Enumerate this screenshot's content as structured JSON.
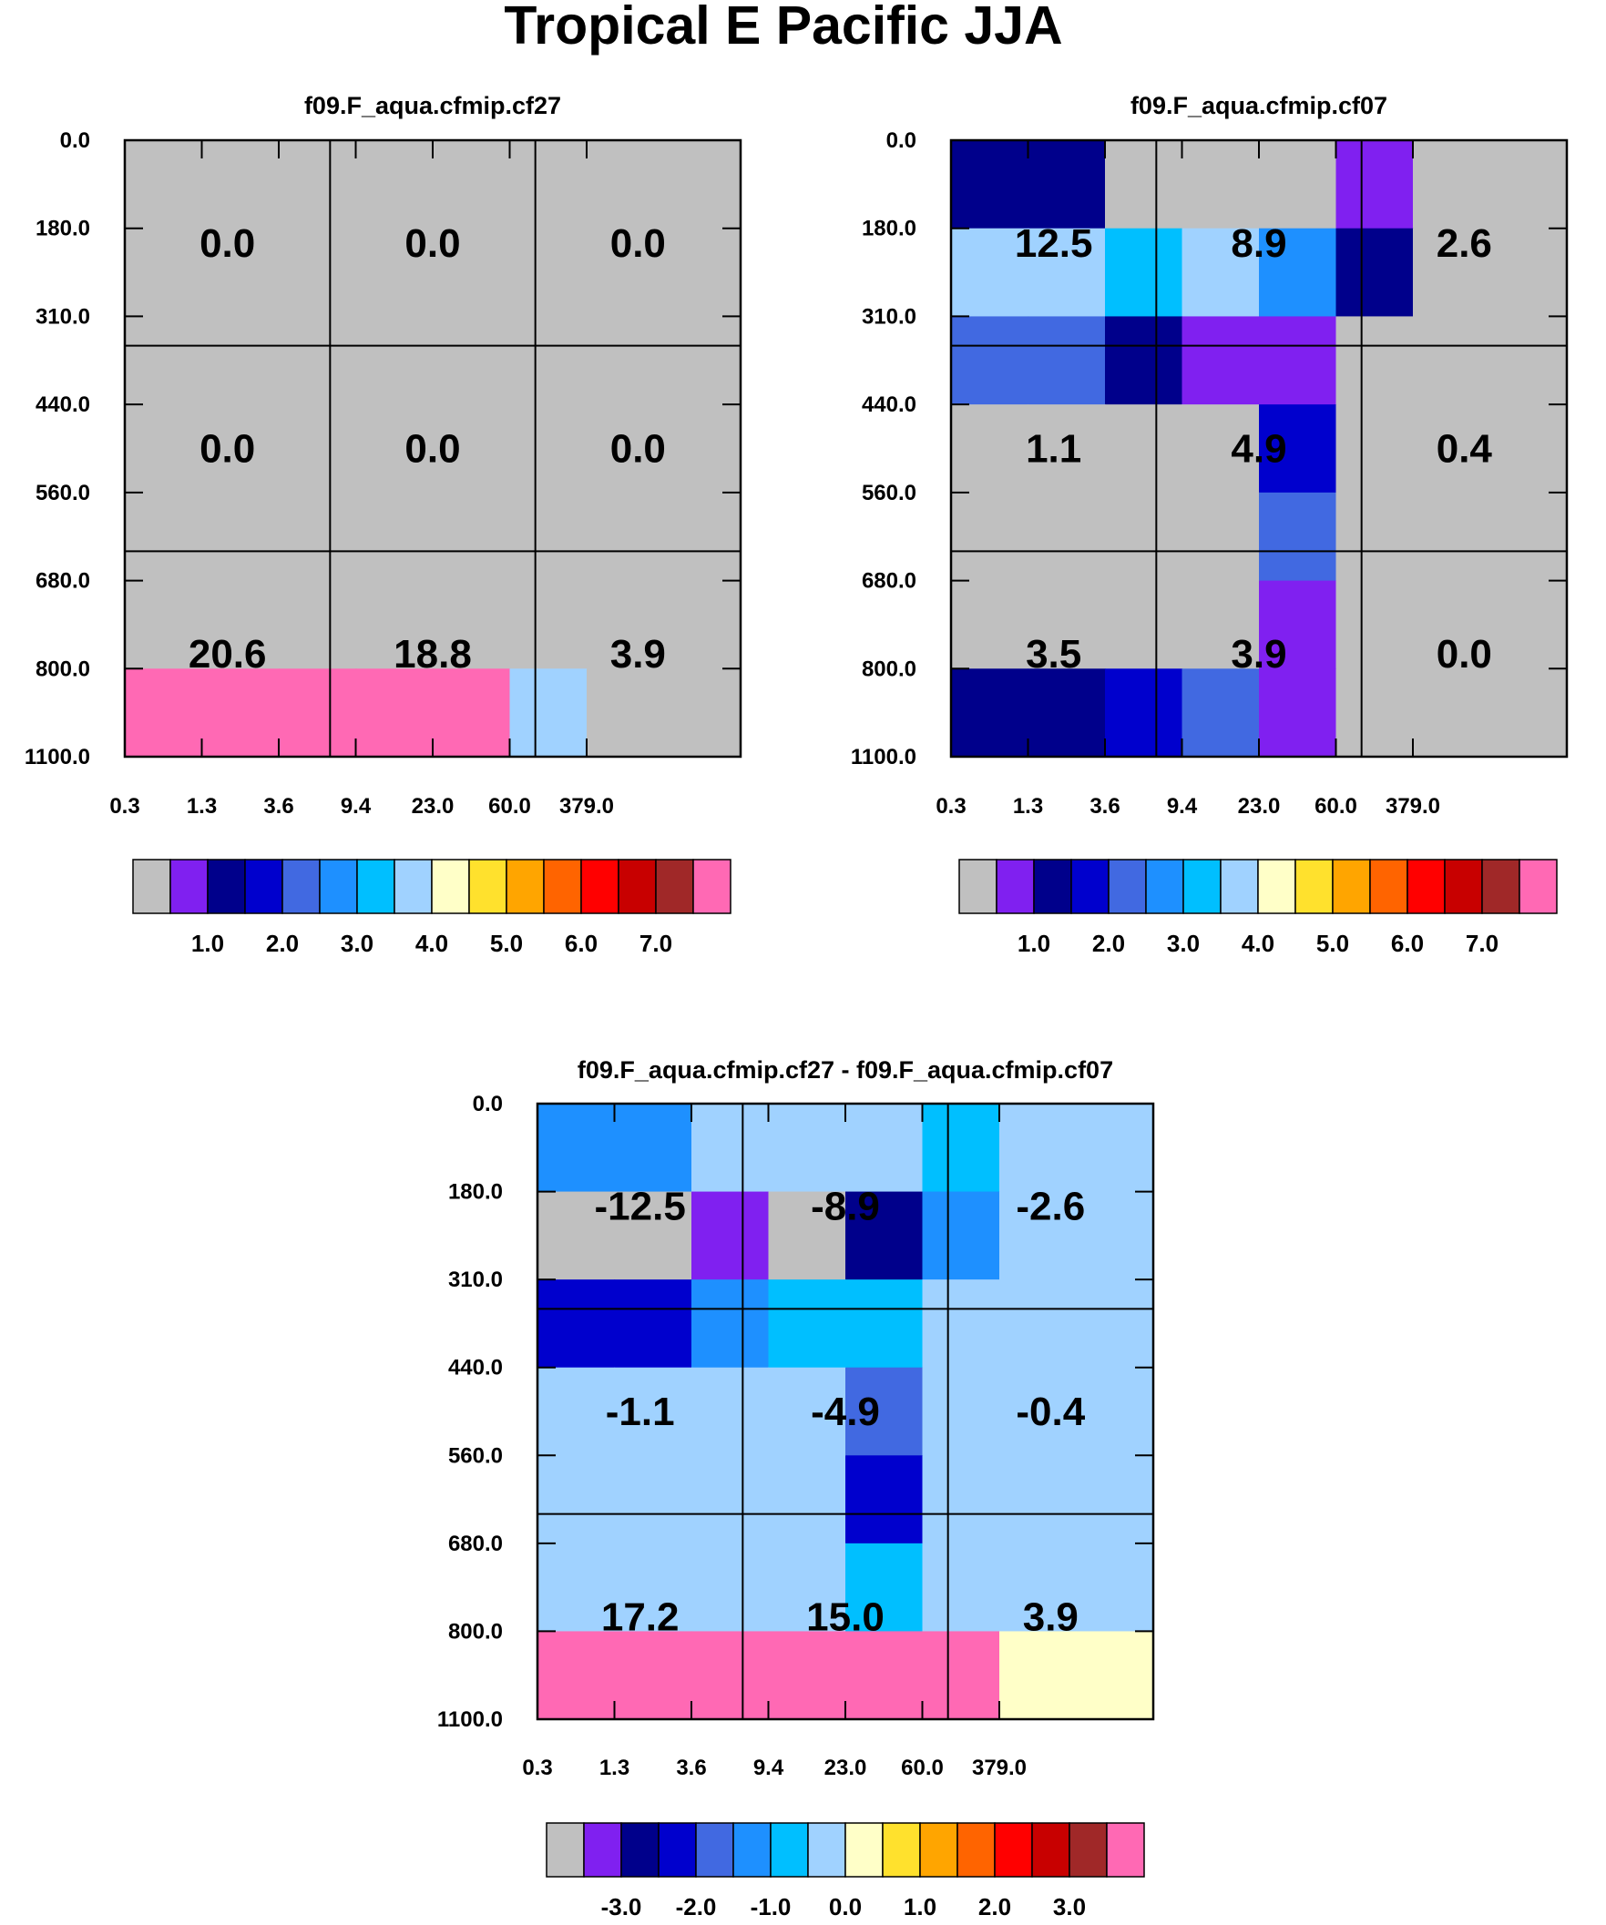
{
  "main_title": "Tropical E Pacific JJA",
  "chart_data": {
    "type": "heatmap",
    "title": "Tropical E Pacific JJA",
    "x_ticks": [
      "0.3",
      "1.3",
      "3.6",
      "9.4",
      "23.0",
      "60.0",
      "379.0"
    ],
    "y_ticks": [
      "0.0",
      "180.0",
      "310.0",
      "440.0",
      "560.0",
      "680.0",
      "800.0",
      "1100.0"
    ],
    "palette": [
      "#c0c0c0",
      "#8020f0",
      "#00008b",
      "#0000cd",
      "#4169e1",
      "#1e90ff",
      "#00bfff",
      "#a0d2ff",
      "#ffffc8",
      "#ffe12d",
      "#ffa500",
      "#ff6400",
      "#ff0000",
      "#c80000",
      "#a02828",
      "#ff69b4"
    ],
    "panels": [
      {
        "title": "f09.F_aqua.cfmip.cf27",
        "cells_color_index": [
          [
            0,
            0,
            0,
            0,
            0,
            0
          ],
          [
            0,
            0,
            0,
            0,
            0,
            0
          ],
          [
            0,
            0,
            0,
            0,
            0,
            0
          ],
          [
            0,
            0,
            0,
            0,
            0,
            0
          ],
          [
            0,
            0,
            0,
            0,
            0,
            0
          ],
          [
            0,
            0,
            0,
            0,
            0,
            0
          ],
          [
            15,
            15,
            15,
            15,
            7,
            0
          ]
        ],
        "block_values": [
          [
            "0.0",
            "0.0",
            "0.0"
          ],
          [
            "0.0",
            "0.0",
            "0.0"
          ],
          [
            "20.6",
            "18.8",
            "3.9"
          ]
        ],
        "colorbar_labels": [
          "1.0",
          "2.0",
          "3.0",
          "4.0",
          "5.0",
          "6.0",
          "7.0"
        ]
      },
      {
        "title": "f09.F_aqua.cfmip.cf07",
        "cells_color_index": [
          [
            2,
            0,
            0,
            0,
            1,
            0
          ],
          [
            7,
            6,
            7,
            5,
            2,
            0
          ],
          [
            4,
            2,
            1,
            1,
            0,
            0
          ],
          [
            0,
            0,
            0,
            3,
            0,
            0
          ],
          [
            0,
            0,
            0,
            4,
            0,
            0
          ],
          [
            0,
            0,
            0,
            1,
            0,
            0
          ],
          [
            2,
            3,
            4,
            1,
            0,
            0
          ]
        ],
        "block_values": [
          [
            "12.5",
            "8.9",
            "2.6"
          ],
          [
            "1.1",
            "4.9",
            "0.4"
          ],
          [
            "3.5",
            "3.9",
            "0.0"
          ]
        ],
        "colorbar_labels": [
          "1.0",
          "2.0",
          "3.0",
          "4.0",
          "5.0",
          "6.0",
          "7.0"
        ]
      },
      {
        "title": "f09.F_aqua.cfmip.cf27 - f09.F_aqua.cfmip.cf07",
        "cells_color_index": [
          [
            5,
            7,
            7,
            7,
            6,
            7
          ],
          [
            0,
            1,
            0,
            2,
            5,
            7
          ],
          [
            3,
            5,
            6,
            6,
            7,
            7
          ],
          [
            7,
            7,
            7,
            4,
            7,
            7
          ],
          [
            7,
            7,
            7,
            3,
            7,
            7
          ],
          [
            7,
            7,
            7,
            6,
            7,
            7
          ],
          [
            15,
            15,
            15,
            15,
            15,
            8
          ]
        ],
        "block_values": [
          [
            "-12.5",
            "-8.9",
            "-2.6"
          ],
          [
            "-1.1",
            "-4.9",
            "-0.4"
          ],
          [
            "17.2",
            "15.0",
            "3.9"
          ]
        ],
        "colorbar_labels": [
          "-3.0",
          "-2.0",
          "-1.0",
          "0.0",
          "1.0",
          "2.0",
          "3.0"
        ]
      }
    ]
  }
}
